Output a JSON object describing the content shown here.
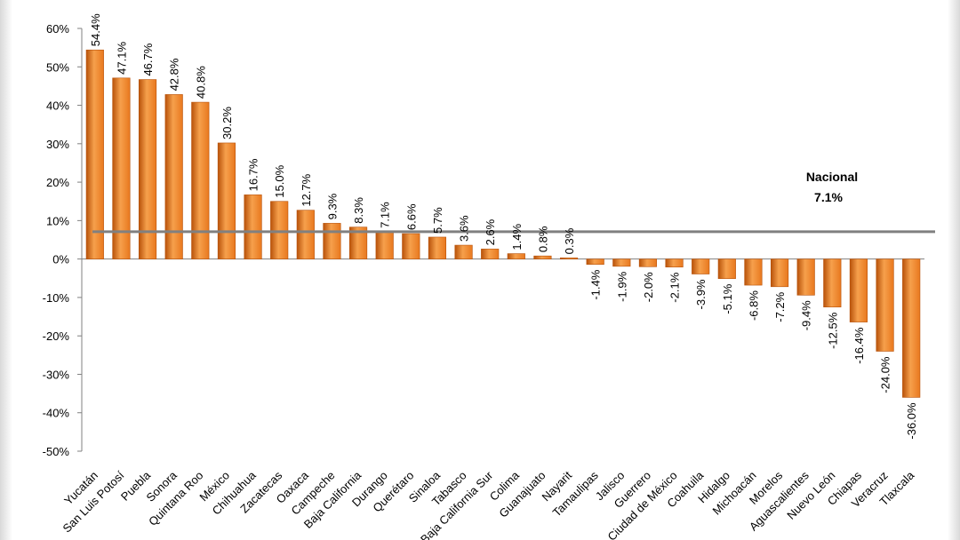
{
  "chart_data": {
    "type": "bar",
    "title": "",
    "xlabel": "",
    "ylabel": "",
    "ylim": [
      -50,
      60
    ],
    "yticks": [
      60,
      50,
      40,
      30,
      20,
      10,
      0,
      -10,
      -20,
      -30,
      -40,
      -50
    ],
    "ytick_labels": [
      "60%",
      "50%",
      "40%",
      "30%",
      "20%",
      "10%",
      "0%",
      "-10%",
      "-20%",
      "-30%",
      "-40%",
      "-50%"
    ],
    "grid": false,
    "bar_color": "#E8781E",
    "bar_color_dark": "#B8520A",
    "bar_color_light": "#F6A04C",
    "categories": [
      "Yucatán",
      "San Luis Potosí",
      "Puebla",
      "Sonora",
      "Quintana Roo",
      "México",
      "Chihuahua",
      "Zacatecas",
      "Oaxaca",
      "Campeche",
      "Baja California",
      "Durango",
      "Querétaro",
      "Sinaloa",
      "Tabasco",
      "Baja California Sur",
      "Colima",
      "Guanajuato",
      "Nayarit",
      "Tamaulipas",
      "Jalisco",
      "Guerrero",
      "Ciudad de México",
      "Coahuila",
      "Hidalgo",
      "Michoacán",
      "Morelos",
      "Aguascalientes",
      "Nuevo León",
      "Chiapas",
      "Veracruz",
      "Tlaxcala"
    ],
    "values": [
      54.4,
      47.1,
      46.7,
      42.8,
      40.8,
      30.2,
      16.7,
      15.0,
      12.7,
      9.3,
      8.3,
      7.1,
      6.6,
      5.7,
      3.6,
      2.6,
      1.4,
      0.8,
      0.3,
      -1.4,
      -1.9,
      -2.0,
      -2.1,
      -3.9,
      -5.1,
      -6.8,
      -7.2,
      -9.4,
      -12.5,
      -16.4,
      -24.0,
      -36.0
    ],
    "value_labels": [
      "54.4%",
      "47.1%",
      "46.7%",
      "42.8%",
      "40.8%",
      "30.2%",
      "16.7%",
      "15.0%",
      "12.7%",
      "9.3%",
      "8.3%",
      "7.1%",
      "6.6%",
      "5.7%",
      "3.6%",
      "2.6%",
      "1.4%",
      "0.8%",
      "0.3%",
      "-1.4%",
      "-1.9%",
      "-2.0%",
      "-2.1%",
      "-3.9%",
      "-5.1%",
      "-6.8%",
      "-7.2%",
      "-9.4%",
      "-12.5%",
      "-16.4%",
      "-24.0%",
      "-36.0%"
    ],
    "reference_line": {
      "value": 7.1,
      "name": "Nacional",
      "label": "7.1%",
      "color": "#808080"
    }
  }
}
